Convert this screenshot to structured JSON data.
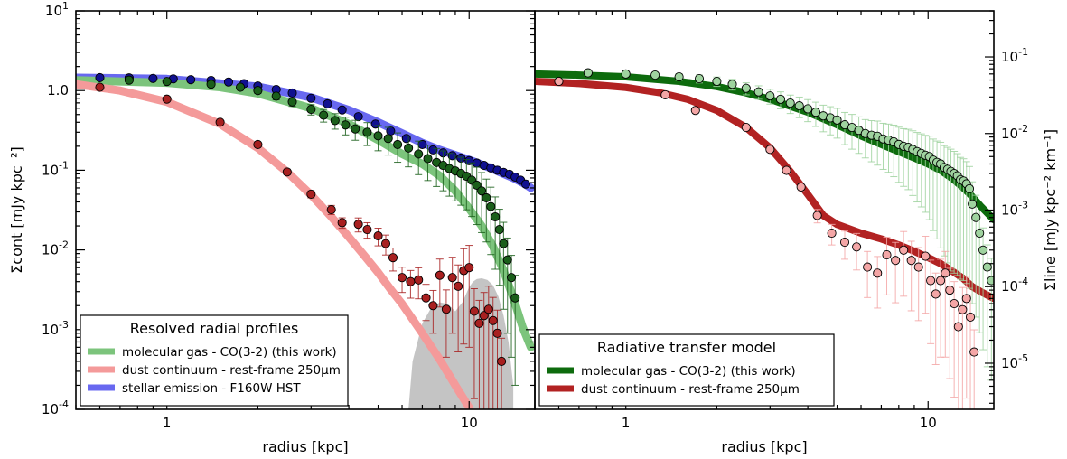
{
  "chart_data": [
    {
      "type": "scatter",
      "xscale": "log",
      "yscale": "log",
      "xlim": [
        0.5,
        16.5
      ],
      "ylim": [
        0.0001,
        10
      ],
      "xlabel": "radius [kpc]",
      "ylabel": "Σcont [mJy kpc⁻²]",
      "x_ticks": [
        {
          "v": 1,
          "label": "1"
        },
        {
          "v": 10,
          "label": "10"
        }
      ],
      "y_ticks": [
        {
          "v": 0.0001,
          "base": "10",
          "exp": "-4"
        },
        {
          "v": 0.001,
          "base": "10",
          "exp": "-3"
        },
        {
          "v": 0.01,
          "base": "10",
          "exp": "-2"
        },
        {
          "v": 0.1,
          "base": "10",
          "exp": "-1"
        },
        {
          "v": 1,
          "base": "1.0",
          "exp": ""
        },
        {
          "v": 10,
          "base": "10",
          "exp": "1"
        }
      ],
      "legend": {
        "title": "Resolved radial profiles",
        "placement": "lower-left",
        "entries": [
          {
            "label": "molecular gas - CO(3-2) (this work)",
            "color": "#7cc47c"
          },
          {
            "label": "dust continuum - rest-frame 250μm",
            "color": "#f49a9a"
          },
          {
            "label": "stellar emission - F160W HST",
            "color": "#6868f0"
          }
        ]
      },
      "fill_region": {
        "color": "#c4c4c4",
        "x": [
          6.3,
          6.5,
          7.0,
          7.5,
          8.0,
          8.5,
          9.0,
          9.5,
          10.0,
          10.3,
          10.6,
          11.0,
          11.5,
          12.0,
          12.5,
          13.0,
          13.5,
          14.0
        ],
        "y": [
          0.0001,
          0.0004,
          0.0012,
          0.0019,
          0.0022,
          0.0021,
          0.0017,
          0.0022,
          0.0034,
          0.004,
          0.0043,
          0.0044,
          0.0042,
          0.0036,
          0.0026,
          0.0015,
          0.0007,
          0.0002
        ]
      },
      "series": [
        {
          "kind": "model",
          "color": "#6868f0",
          "x": [
            0.5,
            1,
            2,
            3,
            4,
            5,
            6,
            7,
            8,
            9,
            10,
            11,
            12,
            13,
            14,
            15,
            16
          ],
          "y": [
            1.45,
            1.4,
            1.12,
            0.82,
            0.57,
            0.4,
            0.29,
            0.22,
            0.18,
            0.155,
            0.135,
            0.118,
            0.103,
            0.09,
            0.08,
            0.07,
            0.06
          ]
        },
        {
          "kind": "model",
          "color": "#7cc47c",
          "x": [
            0.5,
            1,
            1.5,
            2,
            3,
            4,
            5,
            6,
            7,
            8,
            9,
            10,
            11,
            12,
            13,
            14,
            15,
            16
          ],
          "y": [
            1.35,
            1.25,
            1.1,
            0.92,
            0.6,
            0.38,
            0.24,
            0.16,
            0.12,
            0.085,
            0.055,
            0.033,
            0.02,
            0.011,
            0.0055,
            0.0025,
            0.0011,
            0.0006
          ]
        },
        {
          "kind": "model",
          "color": "#f49a9a",
          "x": [
            0.5,
            0.7,
            1,
            1.5,
            2,
            2.5,
            3,
            3.5,
            4,
            4.5,
            5,
            5.5,
            6,
            7,
            8,
            9,
            10
          ],
          "y": [
            1.2,
            1.0,
            0.72,
            0.38,
            0.19,
            0.095,
            0.049,
            0.026,
            0.0145,
            0.0085,
            0.0052,
            0.0032,
            0.0021,
            0.0009,
            0.00042,
            0.0002,
            0.000105
          ]
        },
        {
          "kind": "points",
          "color": "#101090",
          "x": [
            0.6,
            0.75,
            0.9,
            1.05,
            1.2,
            1.4,
            1.6,
            1.8,
            2.0,
            2.3,
            2.6,
            3.0,
            3.4,
            3.8,
            4.3,
            4.9,
            5.5,
            6.2,
            7.0,
            7.6,
            8.2,
            8.8,
            9.4,
            10.0,
            10.6,
            11.2,
            11.8,
            12.4,
            13.0,
            13.6,
            14.2,
            14.8,
            15.4
          ],
          "y": [
            1.45,
            1.44,
            1.42,
            1.4,
            1.37,
            1.34,
            1.28,
            1.22,
            1.14,
            1.03,
            0.93,
            0.8,
            0.68,
            0.57,
            0.47,
            0.38,
            0.31,
            0.25,
            0.21,
            0.18,
            0.165,
            0.152,
            0.142,
            0.132,
            0.123,
            0.115,
            0.107,
            0.1,
            0.094,
            0.089,
            0.082,
            0.075,
            0.067
          ]
        },
        {
          "kind": "points",
          "color": "#1a5f1a",
          "x": [
            0.75,
            1.0,
            1.4,
            1.75,
            2.0,
            2.3,
            2.6,
            3.0,
            3.3,
            3.6,
            3.9,
            4.2,
            4.6,
            5.0,
            5.4,
            5.8,
            6.3,
            6.8,
            7.3,
            7.8,
            8.2,
            8.6,
            9.0,
            9.4,
            9.8,
            10.2,
            10.6,
            11.0,
            11.4,
            11.8,
            12.2,
            12.6,
            13.0,
            13.4,
            13.8,
            14.2
          ],
          "y": [
            1.35,
            1.3,
            1.2,
            1.1,
            1.0,
            0.85,
            0.72,
            0.58,
            0.49,
            0.42,
            0.37,
            0.33,
            0.3,
            0.27,
            0.25,
            0.21,
            0.19,
            0.16,
            0.14,
            0.125,
            0.115,
            0.105,
            0.098,
            0.091,
            0.084,
            0.075,
            0.065,
            0.055,
            0.045,
            0.035,
            0.026,
            0.018,
            0.012,
            0.0075,
            0.0045,
            0.0025
          ],
          "err": [
            0.03,
            0.03,
            0.04,
            0.06,
            0.08,
            0.1,
            0.12,
            0.15,
            0.18,
            0.22,
            0.25,
            0.28,
            0.32,
            0.35,
            0.38,
            0.4,
            0.42,
            0.45,
            0.47,
            0.5,
            0.52,
            0.55,
            0.58,
            0.6,
            0.62,
            0.65,
            0.68,
            0.7,
            0.72,
            0.75,
            0.78,
            0.8,
            0.85,
            0.88,
            0.9,
            0.92
          ]
        },
        {
          "kind": "points",
          "color": "#a82020",
          "x": [
            0.6,
            1.0,
            1.5,
            2.0,
            2.5,
            3.0,
            3.5,
            3.8,
            4.3,
            4.6,
            5.0,
            5.3,
            5.6,
            6.0,
            6.4,
            6.8,
            7.2,
            7.6,
            8.0,
            8.4,
            8.8,
            9.2,
            9.6,
            10.0,
            10.4,
            10.8,
            11.2,
            11.6,
            12.0,
            12.4,
            12.8
          ],
          "y": [
            1.1,
            0.78,
            0.4,
            0.21,
            0.095,
            0.05,
            0.032,
            0.022,
            0.021,
            0.018,
            0.015,
            0.012,
            0.008,
            0.0045,
            0.004,
            0.0042,
            0.0025,
            0.002,
            0.0048,
            0.0018,
            0.0045,
            0.0035,
            0.0055,
            0.006,
            0.0017,
            0.0012,
            0.0015,
            0.0018,
            0.0013,
            0.0009,
            0.0004
          ],
          "err": [
            0.02,
            0.02,
            0.03,
            0.05,
            0.07,
            0.1,
            0.13,
            0.15,
            0.2,
            0.22,
            0.25,
            0.28,
            0.32,
            0.35,
            0.38,
            0.42,
            0.48,
            0.55,
            0.6,
            0.75,
            0.8,
            0.85,
            0.88,
            0.9,
            0.92,
            0.94,
            0.95,
            0.95,
            0.95,
            0.95,
            0.95
          ]
        }
      ]
    },
    {
      "type": "scatter",
      "xscale": "log",
      "yscale": "log",
      "xlim": [
        0.5,
        16.5
      ],
      "ylim": [
        2.5e-06,
        0.4
      ],
      "xlabel": "radius [kpc]",
      "ylabel": "Σline [mJy kpc⁻² km⁻¹]",
      "x_ticks": [
        {
          "v": 1,
          "label": "1"
        },
        {
          "v": 10,
          "label": "10"
        }
      ],
      "y_ticks": [
        {
          "v": 1e-05,
          "base": "10",
          "exp": "-5"
        },
        {
          "v": 0.0001,
          "base": "10",
          "exp": "-4"
        },
        {
          "v": 0.001,
          "base": "10",
          "exp": "-3"
        },
        {
          "v": 0.01,
          "base": "10",
          "exp": "-2"
        },
        {
          "v": 0.1,
          "base": "10",
          "exp": "-1"
        }
      ],
      "legend": {
        "title": "Radiative transfer model",
        "placement": "lower-left",
        "entries": [
          {
            "label": "molecular gas - CO(3-2) (this work)",
            "color": "#0d6b0d"
          },
          {
            "label": "dust continuum - rest-frame 250μm",
            "color": "#b22222"
          }
        ]
      },
      "series": [
        {
          "kind": "model",
          "color": "#0d6b0d",
          "x": [
            0.5,
            0.7,
            1,
            1.5,
            2,
            2.5,
            3,
            4,
            5,
            6,
            7,
            8,
            9,
            10,
            11,
            12,
            13,
            14,
            15,
            16.5
          ],
          "y": [
            0.06,
            0.058,
            0.055,
            0.048,
            0.041,
            0.034,
            0.028,
            0.019,
            0.013,
            0.0093,
            0.0072,
            0.0058,
            0.0048,
            0.004,
            0.0033,
            0.0026,
            0.002,
            0.0015,
            0.0011,
            0.00075
          ]
        },
        {
          "kind": "model",
          "color": "#b22222",
          "x": [
            0.5,
            0.7,
            1,
            1.3,
            1.6,
            2,
            2.5,
            3,
            3.5,
            4,
            4.5,
            5,
            6,
            7,
            8,
            9,
            10,
            11,
            12,
            13,
            14,
            15,
            16.5
          ],
          "y": [
            0.048,
            0.045,
            0.04,
            0.034,
            0.028,
            0.02,
            0.012,
            0.0065,
            0.0032,
            0.0016,
            0.00085,
            0.00065,
            0.0005,
            0.00042,
            0.00035,
            0.00029,
            0.00024,
            0.0002,
            0.00016,
            0.00013,
            0.0001,
            8.5e-05,
            7e-05
          ]
        },
        {
          "kind": "points",
          "color": "#9fd39f",
          "x": [
            0.75,
            1.0,
            1.25,
            1.5,
            1.75,
            2.0,
            2.25,
            2.5,
            2.75,
            3.0,
            3.25,
            3.5,
            3.75,
            4.0,
            4.25,
            4.5,
            4.75,
            5.0,
            5.3,
            5.6,
            5.9,
            6.2,
            6.5,
            6.8,
            7.1,
            7.4,
            7.7,
            8.0,
            8.3,
            8.6,
            8.9,
            9.2,
            9.5,
            9.8,
            10.1,
            10.4,
            10.7,
            11.0,
            11.3,
            11.6,
            11.9,
            12.2,
            12.5,
            12.8,
            13.1,
            13.4,
            13.7,
            14.0,
            14.4,
            14.8,
            15.2,
            15.7,
            16.2
          ],
          "y": [
            0.062,
            0.06,
            0.058,
            0.055,
            0.052,
            0.048,
            0.044,
            0.039,
            0.035,
            0.031,
            0.028,
            0.025,
            0.023,
            0.021,
            0.019,
            0.017,
            0.016,
            0.015,
            0.013,
            0.012,
            0.011,
            0.01,
            0.0095,
            0.0092,
            0.0085,
            0.0082,
            0.0078,
            0.0072,
            0.0068,
            0.0066,
            0.0062,
            0.0058,
            0.0055,
            0.0052,
            0.005,
            0.0045,
            0.0042,
            0.004,
            0.0036,
            0.0034,
            0.0032,
            0.003,
            0.0028,
            0.0025,
            0.0024,
            0.0022,
            0.0019,
            0.0012,
            0.0008,
            0.0005,
            0.0003,
            0.00018,
            0.00012
          ],
          "err": [
            0.05,
            0.06,
            0.08,
            0.1,
            0.12,
            0.14,
            0.16,
            0.18,
            0.2,
            0.22,
            0.25,
            0.27,
            0.3,
            0.32,
            0.35,
            0.38,
            0.4,
            0.42,
            0.45,
            0.48,
            0.5,
            0.52,
            0.55,
            0.58,
            0.6,
            0.62,
            0.65,
            0.68,
            0.7,
            0.72,
            0.75,
            0.78,
            0.8,
            0.82,
            0.85,
            0.88,
            0.9,
            0.92,
            0.93,
            0.94,
            0.95,
            0.95,
            0.95,
            0.95,
            0.95,
            0.95,
            0.95,
            0.95,
            0.95,
            0.95,
            0.95,
            0.95,
            0.95
          ]
        },
        {
          "kind": "points",
          "color": "#f4a6a6",
          "x": [
            0.6,
            1.35,
            1.7,
            2.5,
            3.0,
            3.4,
            3.8,
            4.3,
            4.8,
            5.3,
            5.8,
            6.3,
            6.8,
            7.3,
            7.8,
            8.3,
            8.8,
            9.3,
            9.8,
            10.2,
            10.6,
            11.0,
            11.4,
            11.8,
            12.2,
            12.6,
            13.0,
            13.4,
            13.8,
            14.2
          ],
          "y": [
            0.048,
            0.032,
            0.02,
            0.012,
            0.0062,
            0.0033,
            0.002,
            0.00085,
            0.0005,
            0.00038,
            0.00033,
            0.00018,
            0.00015,
            0.00026,
            0.00022,
            0.0003,
            0.00022,
            0.00018,
            0.00025,
            0.00012,
            8e-05,
            0.00012,
            0.00015,
            9e-05,
            6e-05,
            3e-05,
            5e-05,
            7e-05,
            4e-05,
            1.4e-05
          ],
          "err": [
            0.02,
            0.03,
            0.04,
            0.06,
            0.08,
            0.1,
            0.13,
            0.2,
            0.3,
            0.4,
            0.5,
            0.6,
            0.65,
            0.7,
            0.72,
            0.75,
            0.78,
            0.8,
            0.82,
            0.85,
            0.88,
            0.9,
            0.92,
            0.93,
            0.94,
            0.95,
            0.95,
            0.95,
            0.95,
            0.95
          ]
        }
      ]
    }
  ]
}
